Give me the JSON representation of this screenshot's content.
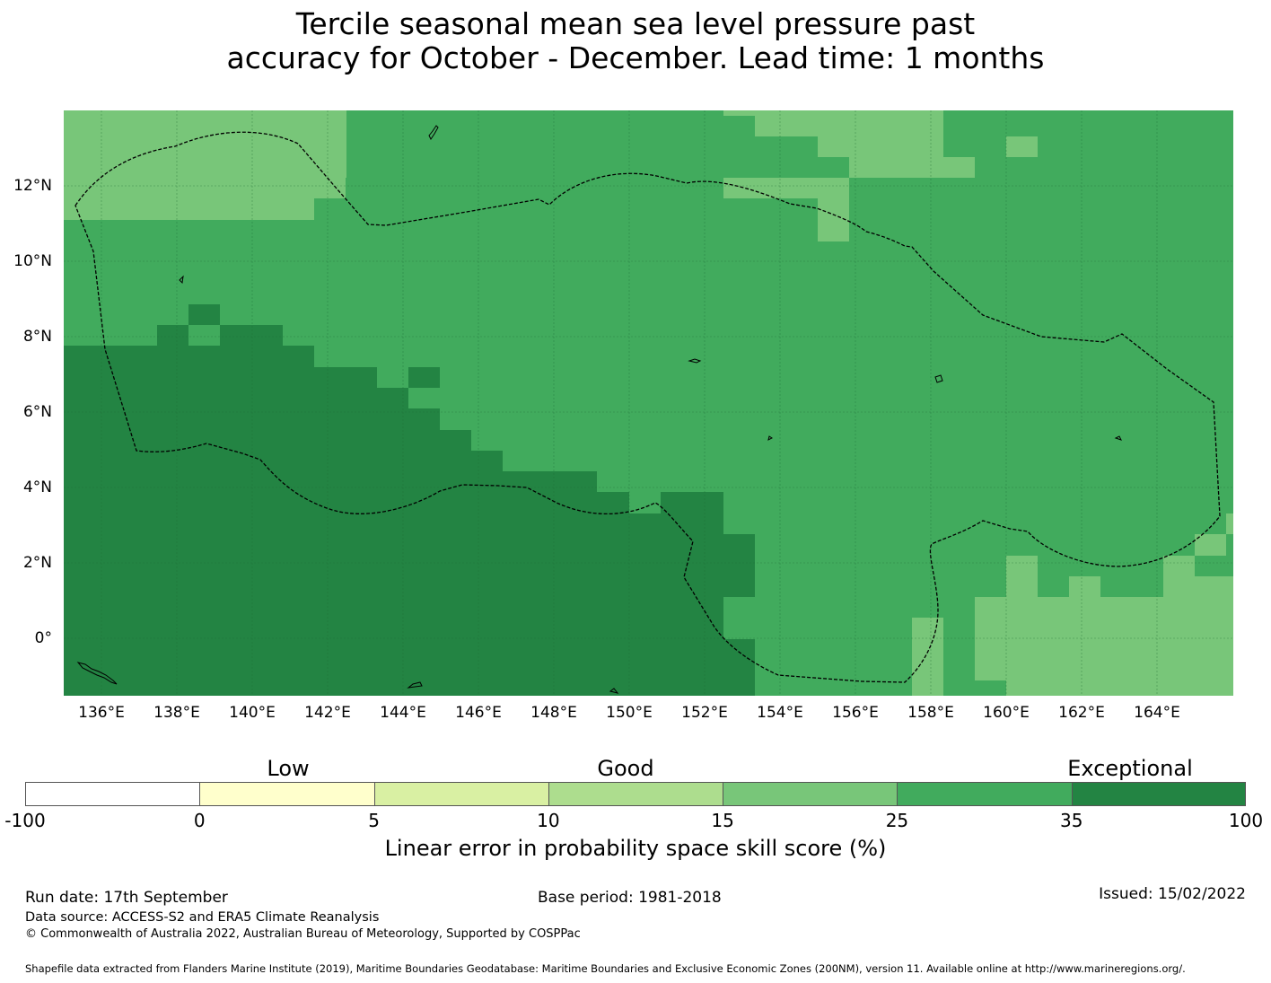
{
  "title": {
    "line1": "Tercile seasonal mean sea level pressure past",
    "line2": "accuracy for October - December. Lead time: 1 months"
  },
  "map": {
    "lon_labels": [
      "136°E",
      "138°E",
      "140°E",
      "142°E",
      "144°E",
      "146°E",
      "148°E",
      "150°E",
      "152°E",
      "154°E",
      "156°E",
      "158°E",
      "160°E",
      "162°E",
      "164°E"
    ],
    "lat_labels": [
      "12°N",
      "10°N",
      "8°N",
      "6°N",
      "4°N",
      "2°N",
      "0°"
    ],
    "lon_range": [
      135.0,
      166.0
    ],
    "lat_range": [
      -1.5,
      14.0
    ],
    "colors": {
      "c15_25": "#78c679",
      "c25_35": "#41ab5d",
      "c35_100": "#238443"
    },
    "region_summary": {
      "northwest": "15-25",
      "central": "25-35",
      "southwest": "35-100",
      "southeast": "15-25"
    }
  },
  "colorbar": {
    "categories": [
      "Low",
      "Good",
      "Exceptional"
    ],
    "tick_labels": [
      "-100",
      "0",
      "5",
      "10",
      "15",
      "25",
      "35",
      "100"
    ],
    "colors": [
      "#ffffff",
      "#ffffcc",
      "#d9f0a3",
      "#addd8e",
      "#78c679",
      "#41ab5d",
      "#238443"
    ],
    "label": "Linear error in probability space skill score (%)"
  },
  "footer": {
    "run_date": "Run date: 17th September",
    "base_period": "Base period: 1981-2018",
    "issued": "Issued: 15/02/2022",
    "data_source": "Data source: ACCESS-S2 and ERA5 Climate Reanalysis",
    "copyright": "© Commonwealth of Australia 2022, Australian Bureau of Meteorology, Supported by COSPPac",
    "shapefile": "Shapefile data extracted from Flanders Marine Institute (2019), Maritime Boundaries Geodatabase: Maritime Boundaries and Exclusive Economic Zones (200NM), version 11. Available online at http://www.marineregions.org/."
  }
}
